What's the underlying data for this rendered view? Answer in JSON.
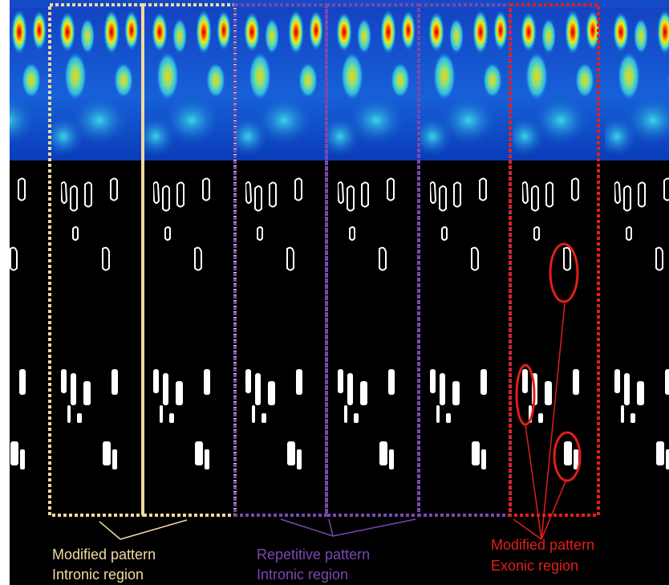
{
  "labels": [
    {
      "line1": "Modified pattern",
      "line2": "Intronic region"
    },
    {
      "line1": "Repetitive pattern",
      "line2": "Intronic region"
    },
    {
      "line1": "Modified pattern",
      "line2": "Exonic region"
    }
  ]
}
